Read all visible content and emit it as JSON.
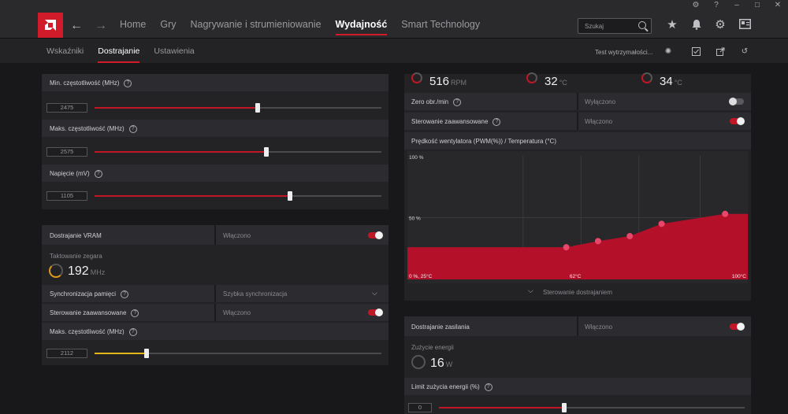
{
  "window": {
    "controls": [
      "⚙",
      "?",
      "–",
      "□",
      "✕"
    ]
  },
  "nav": {
    "back": "←",
    "forward": "→",
    "items": [
      "Home",
      "Gry",
      "Nagrywanie i strumieniowanie",
      "Wydajność",
      "Smart Technology"
    ],
    "active": "Wydajność"
  },
  "search": {
    "placeholder": "Szukaj"
  },
  "subnav": {
    "items": [
      "Wskaźniki",
      "Dostrajanie",
      "Ustawienia"
    ],
    "active": "Dostrajanie",
    "stress_test": "Test wytrzymałości..."
  },
  "gpu": {
    "min_freq": {
      "label": "Min. częstotliwość (MHz)",
      "value": "2475",
      "level": 0.57
    },
    "max_freq": {
      "label": "Maks. częstotliwość (MHz)",
      "value": "2575",
      "level": 0.6
    },
    "voltage": {
      "label": "Napięcie (mV)",
      "value": "1105",
      "level": 0.68
    }
  },
  "vram": {
    "tuning": {
      "label": "Dostrajanie VRAM",
      "status": "Włączono"
    },
    "clock": {
      "label": "Taktowanie zegara",
      "value": "192",
      "unit": "MHz"
    },
    "sync": {
      "label": "Synchronizacja pamięci",
      "value": "Szybka synchronizacja"
    },
    "advanced": {
      "label": "Sterowanie zaawansowane",
      "status": "Włączono"
    },
    "max_freq": {
      "label": "Maks. częstotliwość (MHz)",
      "value": "2112",
      "level": 0.18
    }
  },
  "fan": {
    "rpm": {
      "value": "516",
      "unit": "RPM"
    },
    "temp1": {
      "value": "32",
      "unit": "°C"
    },
    "temp2": {
      "value": "34",
      "unit": "°C"
    },
    "zero_rpm": {
      "label": "Zero obr./min",
      "status": "Wyłączono"
    },
    "advanced": {
      "label": "Sterowanie zaawansowane",
      "status": "Włączono"
    },
    "curve_title": "Prędkość wentylatora (PWM(%)) / Temperatura (°C)",
    "tuning_link": "Sterowanie dostrajaniem"
  },
  "chart_data": {
    "type": "area",
    "title": "Prędkość wentylatora (PWM(%)) / Temperatura (°C)",
    "y_ticks": [
      "100 %",
      "50 %"
    ],
    "x_ticks": [
      "0 %, 25°C",
      "62°C",
      "100°C"
    ],
    "series": [
      {
        "x": [
          25,
          60,
          67,
          74,
          81,
          95,
          100
        ],
        "y": [
          26,
          26,
          31,
          35,
          45,
          53,
          53
        ]
      }
    ],
    "points": [
      {
        "x": 60,
        "y": 26
      },
      {
        "x": 67,
        "y": 31
      },
      {
        "x": 74,
        "y": 35
      },
      {
        "x": 81,
        "y": 45
      },
      {
        "x": 95,
        "y": 53
      }
    ],
    "xlim": [
      25,
      100
    ],
    "ylim": [
      0,
      100
    ],
    "color": "#b5102a"
  },
  "power": {
    "tuning": {
      "label": "Dostrajanie zasilania",
      "status": "Włączono"
    },
    "usage": {
      "label": "Zużycie energii",
      "value": "16",
      "unit": "W"
    },
    "limit": {
      "label": "Limit zużycia energii (%)",
      "value": "0",
      "level": 0.41
    }
  }
}
